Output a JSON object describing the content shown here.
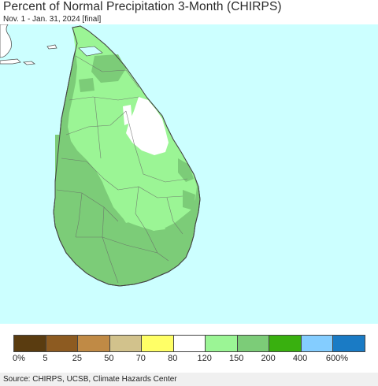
{
  "title": "Percent of Normal Precipitation 3-Month (CHIRPS)",
  "subtitle": "Nov. 1 - Jan. 31, 2024 [final]",
  "source": "Source: CHIRPS, UCSB, Climate Hazards Center",
  "colors": {
    "ocean": "#ccffff",
    "land_150_200": "#7ccc78",
    "land_120_150": "#9bf595",
    "land_80_120": "#ffffff",
    "border": "#555555"
  },
  "legend": {
    "colors": [
      "#5a3c10",
      "#8d5b21",
      "#c08a45",
      "#d2c28c",
      "#ffff66",
      "#ffffff",
      "#9bf595",
      "#7ccc78",
      "#39b00f",
      "#84cdff",
      "#1a7bc5"
    ],
    "labels": [
      "0%",
      "5",
      "25",
      "50",
      "70",
      "80",
      "120",
      "150",
      "200",
      "400",
      "600%"
    ]
  }
}
